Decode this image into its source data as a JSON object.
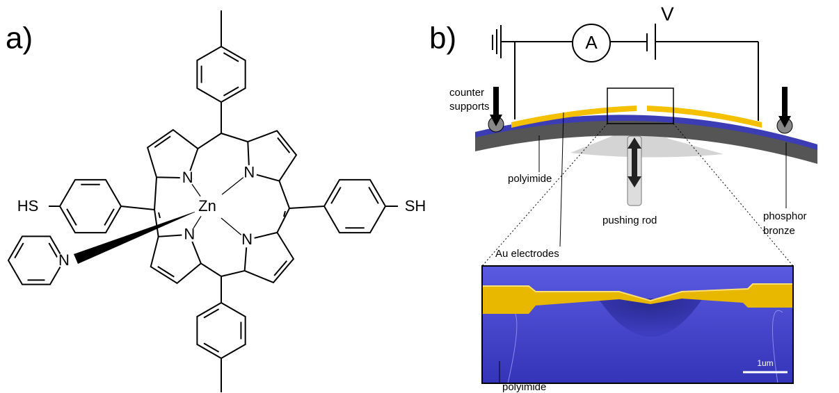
{
  "panel_a": {
    "label": "a)",
    "substituents": {
      "left": "HS",
      "right": "SH"
    },
    "atoms": {
      "zinc": "Zn",
      "nitrogens": [
        "N",
        "N",
        "N",
        "N"
      ],
      "pyridine_n": "N"
    }
  },
  "panel_b": {
    "label": "b)",
    "voltage": "V",
    "ammeter": "A",
    "labels": {
      "counter_supports": [
        "counter",
        "supports"
      ],
      "polyimide": "polyimide",
      "au_electrodes": "Au electrodes",
      "pushing_rod": "pushing rod",
      "phosphor_bronze": [
        "phosphor",
        "bronze"
      ]
    },
    "inset": {
      "scale_bar": "1um",
      "polyimide": "polyimide"
    }
  }
}
